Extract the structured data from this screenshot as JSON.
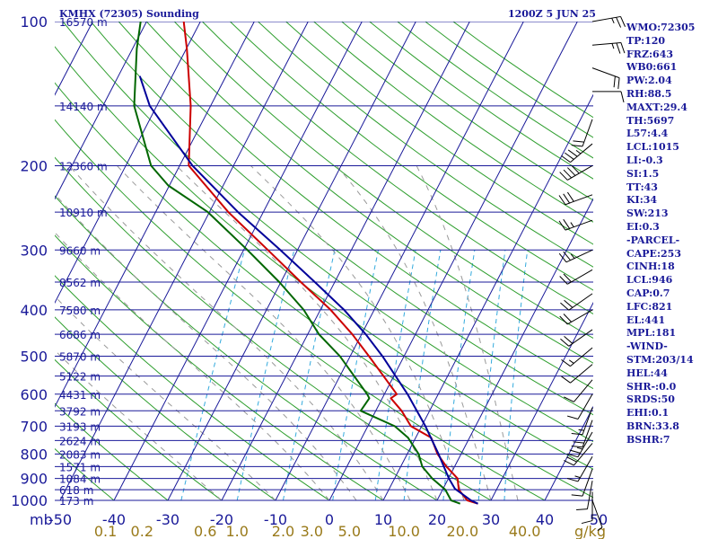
{
  "header": {
    "station_title": "KMHX (72305) Sounding",
    "valid_time": "1200Z  5 JUN 25"
  },
  "indices": [
    "WMO:72305",
    "TP:120",
    "FRZ:643",
    "WB0:661",
    "PW:2.04",
    "RH:88.5",
    "MAXT:29.4",
    "TH:5697",
    "L57:4.4",
    "LCL:1015",
    "LI:-0.3",
    "SI:1.5",
    "TT:43",
    "KI:34",
    "SW:213",
    "EI:0.3",
    "-PARCEL-",
    "CAPE:253",
    "CINH:18",
    "LCL:946",
    "CAP:0.7",
    "LFC:821",
    "EL:441",
    "MPL:181",
    "-WIND-",
    "STM:203/14",
    "HEL:44",
    "SHR-:0.0",
    "SRDS:50",
    "EHI:0.1",
    "BRN:33.8",
    "BSHR:7"
  ],
  "colors": {
    "isobar": "#1a1a99",
    "isotherm": "#1a1a99",
    "dry_adiabat": "#2e9e2e",
    "moist_adiabat": "#999999",
    "mixing_ratio": "#33aadd",
    "temperature": "#cc0000",
    "dewpoint": "#006600",
    "parcel": "#000099",
    "wind_barb": "#000000",
    "axis_text": "#1a1a99",
    "mixing_text": "#997a1a",
    "background": "#ffffff"
  },
  "chart_data": {
    "type": "skew-t log-p",
    "pressure_unit": "mb",
    "temperature_unit": "°C",
    "mixing_ratio_unit": "g/kg",
    "pressure_levels": [
      100,
      200,
      300,
      400,
      500,
      600,
      700,
      800,
      900,
      1000
    ],
    "pressure_ticks": [
      {
        "p": 100,
        "label": "100"
      },
      {
        "p": 200,
        "label": "200"
      },
      {
        "p": 300,
        "label": "300"
      },
      {
        "p": 400,
        "label": "400"
      },
      {
        "p": 500,
        "label": "500"
      },
      {
        "p": 600,
        "label": "600"
      },
      {
        "p": 700,
        "label": "700"
      },
      {
        "p": 800,
        "label": "800"
      },
      {
        "p": 900,
        "label": "900"
      },
      {
        "p": 1000,
        "label": "1000"
      }
    ],
    "height_labels": [
      {
        "p": 100,
        "label": "16570 m"
      },
      {
        "p": 150,
        "label": "14140 m"
      },
      {
        "p": 200,
        "label": "12360 m"
      },
      {
        "p": 250,
        "label": "10910 m"
      },
      {
        "p": 300,
        "label": "9660 m"
      },
      {
        "p": 350,
        "label": "8562 m"
      },
      {
        "p": 400,
        "label": "7580 m"
      },
      {
        "p": 450,
        "label": "6686 m"
      },
      {
        "p": 500,
        "label": "5870 m"
      },
      {
        "p": 550,
        "label": "5122 m"
      },
      {
        "p": 600,
        "label": "4431 m"
      },
      {
        "p": 650,
        "label": "3792 m"
      },
      {
        "p": 700,
        "label": "3193 m"
      },
      {
        "p": 750,
        "label": "2624 m"
      },
      {
        "p": 800,
        "label": "2083 m"
      },
      {
        "p": 850,
        "label": "1571 m"
      },
      {
        "p": 900,
        "label": "1084 m"
      },
      {
        "p": 950,
        "label": "618 m"
      },
      {
        "p": 1000,
        "label": "173 m"
      }
    ],
    "mb_label": "mb",
    "temperature_ticks": [
      "-50",
      "-40",
      "-30",
      "-20",
      "-10",
      "0",
      "10",
      "20",
      "30",
      "40",
      "50"
    ],
    "temperature_tick_values": [
      -50,
      -40,
      -30,
      -20,
      -10,
      0,
      10,
      20,
      30,
      40,
      50
    ],
    "mixing_ratio_ticks": [
      {
        "w": 0.1,
        "label": "0.1"
      },
      {
        "w": 0.2,
        "label": "0.2"
      },
      {
        "w": 0.6,
        "label": "0.6"
      },
      {
        "w": 1.0,
        "label": "1.0"
      },
      {
        "w": 2.0,
        "label": "2.0"
      },
      {
        "w": 3.0,
        "label": "3.0"
      },
      {
        "w": 5.0,
        "label": "5.0"
      },
      {
        "w": 10.0,
        "label": "10.0"
      },
      {
        "w": 20.0,
        "label": "20.0"
      },
      {
        "w": 40.0,
        "label": "40.0"
      }
    ],
    "mixing_ratio_unit_label": "g/kg",
    "isotherm_range": [
      -160,
      60
    ],
    "dry_adiabat_theta_c": [
      -40,
      -30,
      -20,
      -10,
      0,
      10,
      20,
      30,
      40,
      50,
      60,
      70,
      80,
      90,
      100,
      110,
      120,
      130,
      140,
      150,
      160,
      170,
      180,
      190,
      200,
      210
    ],
    "moist_adiabat_base_c": [
      -20,
      -10,
      0,
      5,
      10,
      15,
      20,
      25,
      30,
      35
    ],
    "mixing_ratio_lines": [
      0.4,
      1,
      2,
      4,
      7,
      10,
      16,
      24,
      32
    ],
    "series": [
      {
        "name": "Temperature",
        "points": [
          {
            "p": 100,
            "t": -73.1
          },
          {
            "p": 114,
            "t": -69.9
          },
          {
            "p": 150,
            "t": -63.7
          },
          {
            "p": 200,
            "t": -58.3
          },
          {
            "p": 250,
            "t": -46.5
          },
          {
            "p": 300,
            "t": -35.5
          },
          {
            "p": 350,
            "t": -26.3
          },
          {
            "p": 400,
            "t": -18.1
          },
          {
            "p": 450,
            "t": -11.7
          },
          {
            "p": 500,
            "t": -6.5
          },
          {
            "p": 600,
            "t": 2.3
          },
          {
            "p": 612,
            "t": 1.6
          },
          {
            "p": 650,
            "t": 4.8
          },
          {
            "p": 700,
            "t": 8.0
          },
          {
            "p": 740,
            "t": 12.9
          },
          {
            "p": 800,
            "t": 15.6
          },
          {
            "p": 850,
            "t": 18.5
          },
          {
            "p": 900,
            "t": 21.7
          },
          {
            "p": 950,
            "t": 23.0
          },
          {
            "p": 1000,
            "t": 25.6
          },
          {
            "p": 1016,
            "t": 27.9
          }
        ]
      },
      {
        "name": "Dewpoint",
        "points": [
          {
            "p": 100,
            "t": -81.1
          },
          {
            "p": 114,
            "t": -79.2
          },
          {
            "p": 150,
            "t": -74.2
          },
          {
            "p": 200,
            "t": -65.3
          },
          {
            "p": 220,
            "t": -60.2
          },
          {
            "p": 250,
            "t": -50.3
          },
          {
            "p": 300,
            "t": -39.3
          },
          {
            "p": 350,
            "t": -30.3
          },
          {
            "p": 400,
            "t": -23.1
          },
          {
            "p": 450,
            "t": -17.9
          },
          {
            "p": 500,
            "t": -11.9
          },
          {
            "p": 600,
            "t": -3.2
          },
          {
            "p": 612,
            "t": -2.4
          },
          {
            "p": 650,
            "t": -2.8
          },
          {
            "p": 700,
            "t": 5.0
          },
          {
            "p": 740,
            "t": 8.6
          },
          {
            "p": 800,
            "t": 12.1
          },
          {
            "p": 850,
            "t": 14.0
          },
          {
            "p": 900,
            "t": 17.0
          },
          {
            "p": 950,
            "t": 20.5
          },
          {
            "p": 1000,
            "t": 22.6
          },
          {
            "p": 1016,
            "t": 24.6
          }
        ]
      },
      {
        "name": "Parcel",
        "points": [
          {
            "p": 130,
            "t": -76.0
          },
          {
            "p": 150,
            "t": -71.3
          },
          {
            "p": 200,
            "t": -57.6
          },
          {
            "p": 250,
            "t": -44.7
          },
          {
            "p": 300,
            "t": -33.2
          },
          {
            "p": 350,
            "t": -23.7
          },
          {
            "p": 400,
            "t": -15.6
          },
          {
            "p": 450,
            "t": -9.2
          },
          {
            "p": 500,
            "t": -4.0
          },
          {
            "p": 600,
            "t": 4.3
          },
          {
            "p": 700,
            "t": 10.7
          },
          {
            "p": 800,
            "t": 15.8
          },
          {
            "p": 850,
            "t": 18.0
          },
          {
            "p": 900,
            "t": 20.1
          },
          {
            "p": 946,
            "t": 22.2
          },
          {
            "p": 1000,
            "t": 26.3
          },
          {
            "p": 1016,
            "t": 27.9
          }
        ]
      }
    ],
    "wind_profile": [
      {
        "p": 100,
        "dir": 80,
        "spd": 25
      },
      {
        "p": 112,
        "dir": 85,
        "spd": 25
      },
      {
        "p": 125,
        "dir": 110,
        "spd": 20
      },
      {
        "p": 140,
        "dir": 90,
        "spd": 10
      },
      {
        "p": 160,
        "dir": 200,
        "spd": 20
      },
      {
        "p": 180,
        "dir": 230,
        "spd": 35
      },
      {
        "p": 200,
        "dir": 240,
        "spd": 40
      },
      {
        "p": 230,
        "dir": 250,
        "spd": 30
      },
      {
        "p": 260,
        "dir": 250,
        "spd": 25
      },
      {
        "p": 300,
        "dir": 245,
        "spd": 25
      },
      {
        "p": 330,
        "dir": 240,
        "spd": 20
      },
      {
        "p": 370,
        "dir": 235,
        "spd": 20
      },
      {
        "p": 400,
        "dir": 240,
        "spd": 20
      },
      {
        "p": 440,
        "dir": 235,
        "spd": 20
      },
      {
        "p": 480,
        "dir": 230,
        "spd": 15
      },
      {
        "p": 520,
        "dir": 230,
        "spd": 10
      },
      {
        "p": 560,
        "dir": 220,
        "spd": 10
      },
      {
        "p": 600,
        "dir": 210,
        "spd": 10
      },
      {
        "p": 640,
        "dir": 200,
        "spd": 15
      },
      {
        "p": 680,
        "dir": 200,
        "spd": 20
      },
      {
        "p": 720,
        "dir": 210,
        "spd": 25
      },
      {
        "p": 760,
        "dir": 220,
        "spd": 20
      },
      {
        "p": 810,
        "dir": 210,
        "spd": 15
      },
      {
        "p": 860,
        "dir": 200,
        "spd": 10
      },
      {
        "p": 910,
        "dir": 190,
        "spd": 10
      },
      {
        "p": 960,
        "dir": 180,
        "spd": 10
      },
      {
        "p": 1000,
        "dir": 160,
        "spd": 5
      }
    ]
  }
}
